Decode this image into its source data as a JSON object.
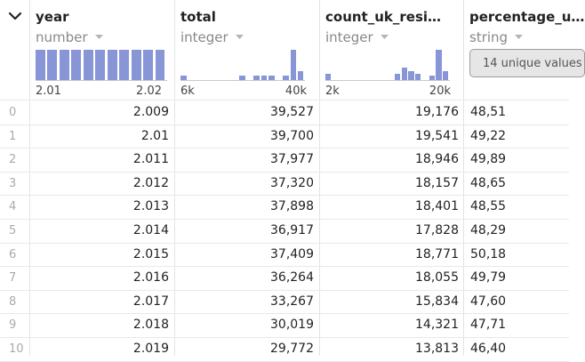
{
  "columns": [
    {
      "name": "year",
      "type": "number",
      "range_min": "2.01",
      "range_max": "2.02",
      "histogram": [
        1,
        1,
        1,
        1,
        1,
        1,
        1,
        1,
        1,
        1,
        1
      ],
      "histogram_kind": "uniform"
    },
    {
      "name": "total",
      "type": "integer",
      "range_min": "6k",
      "range_max": "40k",
      "histogram": [
        0.15,
        0,
        0,
        0,
        0,
        0,
        0,
        0,
        0.15,
        0,
        0.15,
        0.15,
        0.15,
        0,
        0.15,
        1.0,
        0.3
      ]
    },
    {
      "name": "count_uk_resi…",
      "type": "integer",
      "range_min": "2k",
      "range_max": "20k",
      "histogram": [
        0.2,
        0,
        0,
        0,
        0,
        0,
        0,
        0,
        0,
        0,
        0.2,
        0.4,
        0.3,
        0.2,
        0,
        0.15,
        1.0,
        0.3
      ]
    },
    {
      "name": "percentage_u…",
      "type": "string",
      "unique_label": "14 unique values"
    }
  ],
  "rows": [
    {
      "index": "0",
      "year": "2.009",
      "total": "39,527",
      "count": "19,176",
      "pct": "48,51"
    },
    {
      "index": "1",
      "year": "2.01",
      "total": "39,700",
      "count": "19,541",
      "pct": "49,22"
    },
    {
      "index": "2",
      "year": "2.011",
      "total": "37,977",
      "count": "18,946",
      "pct": "49,89"
    },
    {
      "index": "3",
      "year": "2.012",
      "total": "37,320",
      "count": "18,157",
      "pct": "48,65"
    },
    {
      "index": "4",
      "year": "2.013",
      "total": "37,898",
      "count": "18,401",
      "pct": "48,55"
    },
    {
      "index": "5",
      "year": "2.014",
      "total": "36,917",
      "count": "17,828",
      "pct": "48,29"
    },
    {
      "index": "6",
      "year": "2.015",
      "total": "37,409",
      "count": "18,771",
      "pct": "50,18"
    },
    {
      "index": "7",
      "year": "2.016",
      "total": "36,264",
      "count": "18,055",
      "pct": "49,79"
    },
    {
      "index": "8",
      "year": "2.017",
      "total": "33,267",
      "count": "15,834",
      "pct": "47,60"
    },
    {
      "index": "9",
      "year": "2.018",
      "total": "30,019",
      "count": "14,321",
      "pct": "47,71"
    },
    {
      "index": "10",
      "year": "2.019",
      "total": "29,772",
      "count": "13,813",
      "pct": "46,40"
    }
  ],
  "icons": {
    "collapse": "chevron-down-icon",
    "type_menu": "caret-down-icon"
  },
  "colors": {
    "histogram_bar": "#8895d6",
    "grid_line": "#e3e3e3",
    "type_text": "#888888",
    "index_text": "#aaaaaa"
  }
}
